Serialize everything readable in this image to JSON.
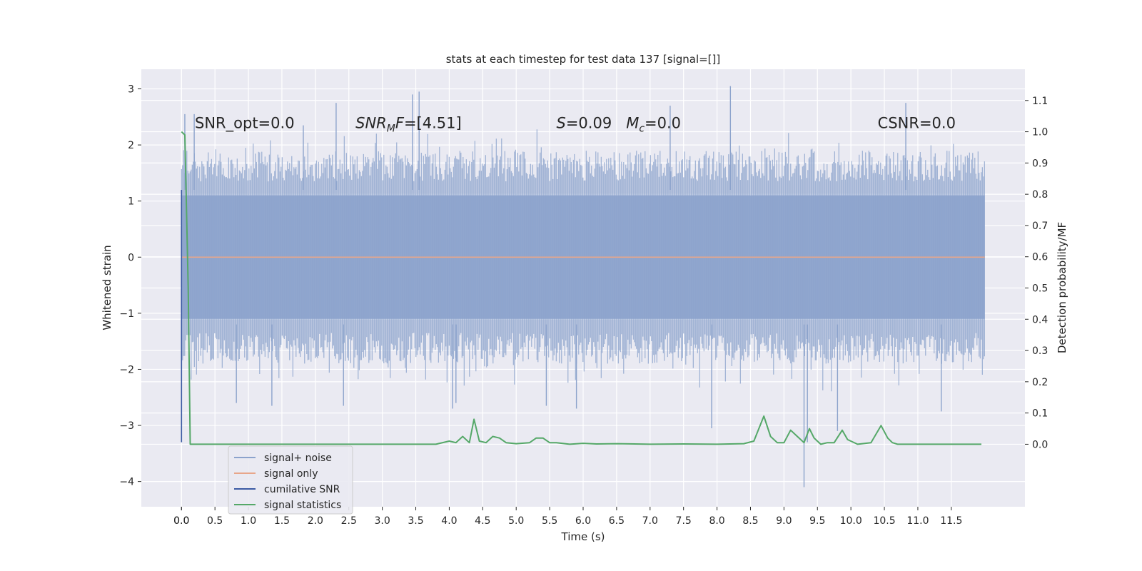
{
  "chart_data": {
    "type": "line",
    "title": "stats at each timestep for test data 137 [signal=[]]",
    "xlabel": "Time (s)",
    "ylabel_left": "Whitened strain",
    "ylabel_right": "Detection probability/MF",
    "xlim": [
      -0.6,
      12.6
    ],
    "ylim_left": [
      -4.45,
      3.35
    ],
    "ylim_right": [
      -0.2,
      1.2
    ],
    "grid": true,
    "x_ticks": [
      "0.0",
      "0.0",
      "0.5",
      "1.0",
      "1.5",
      "2.0",
      "2.5",
      "3.0",
      "3.5",
      "4.0",
      "4.5",
      "5.0",
      "5.5",
      "6.0",
      "6.5",
      "7.0",
      "7.5",
      "8.0",
      "8.5",
      "9.0",
      "9.5",
      "10.0",
      "10.5",
      "11.0",
      "11.5"
    ],
    "x_tick_values": [
      0.0,
      0.0,
      0.5,
      1.0,
      1.5,
      2.0,
      2.5,
      3.0,
      3.5,
      4.0,
      4.5,
      5.0,
      5.5,
      6.0,
      6.5,
      7.0,
      7.5,
      8.0,
      8.5,
      9.0,
      9.5,
      10.0,
      10.5,
      11.0,
      11.5
    ],
    "y_ticks_left": [
      "3",
      "2",
      "1",
      "0",
      "−1",
      "−2",
      "−3",
      "−4"
    ],
    "y_tick_values_left": [
      3,
      2,
      1,
      0,
      -1,
      -2,
      -3,
      -4
    ],
    "y_ticks_right": [
      "1.1",
      "1.0",
      "0.9",
      "0.8",
      "0.7",
      "0.6",
      "0.5",
      "0.4",
      "0.3",
      "0.2",
      "0.1",
      "0.0"
    ],
    "y_tick_values_right": [
      1.1,
      1.0,
      0.9,
      0.8,
      0.7,
      0.6,
      0.5,
      0.4,
      0.3,
      0.2,
      0.1,
      0.0
    ],
    "annotations": [
      {
        "x": 0.2,
        "y": 2.3,
        "text": "SNR_opt=0.0"
      },
      {
        "x": 2.6,
        "y": 2.3,
        "text": "SNR_MF=[4.51]"
      },
      {
        "x": 5.6,
        "y": 2.3,
        "text": "S=0.09   M_c=0.0"
      },
      {
        "x": 10.4,
        "y": 2.3,
        "text": "CSNR=0.0"
      }
    ],
    "legend": {
      "location": "lower-left",
      "entries": [
        "signal+ noise",
        "signal only",
        "cumilative SNR",
        "signal statistics"
      ]
    },
    "series": [
      {
        "name": "signal+ noise",
        "axis": "left",
        "color": "#8ca3cc",
        "kind": "noise-band",
        "x_range": [
          0.0,
          12.0
        ],
        "core_amplitude": 1.1,
        "spikes": [
          {
            "x": 0.05,
            "y": 2.55
          },
          {
            "x": 0.19,
            "y": 2.55
          },
          {
            "x": 0.82,
            "y": -2.6
          },
          {
            "x": 1.35,
            "y": -2.65
          },
          {
            "x": 1.82,
            "y": 2.35
          },
          {
            "x": 2.31,
            "y": 2.75
          },
          {
            "x": 2.42,
            "y": -2.65
          },
          {
            "x": 3.45,
            "y": 2.9
          },
          {
            "x": 3.55,
            "y": 2.95
          },
          {
            "x": 4.05,
            "y": -2.7
          },
          {
            "x": 4.1,
            "y": -2.6
          },
          {
            "x": 5.45,
            "y": -2.65
          },
          {
            "x": 5.9,
            "y": -2.7
          },
          {
            "x": 7.3,
            "y": 2.7
          },
          {
            "x": 7.92,
            "y": -3.05
          },
          {
            "x": 8.2,
            "y": 3.05
          },
          {
            "x": 9.3,
            "y": -4.1
          },
          {
            "x": 9.35,
            "y": -3.3
          },
          {
            "x": 9.8,
            "y": -3.1
          },
          {
            "x": 10.82,
            "y": 2.75
          },
          {
            "x": 11.35,
            "y": -2.75
          }
        ]
      },
      {
        "name": "signal only",
        "axis": "left",
        "color": "#e8a68a",
        "x": [
          0.0,
          12.0
        ],
        "y": [
          0.0,
          0.0
        ]
      },
      {
        "name": "cumilative SNR",
        "axis": "left",
        "color": "#3b5aa3",
        "x": [
          0.0,
          0.0
        ],
        "y": [
          -3.3,
          1.2
        ]
      },
      {
        "name": "signal statistics",
        "axis": "right",
        "color": "#55a868",
        "x": [
          0.0,
          0.05,
          0.1,
          0.13,
          0.3,
          1.0,
          2.0,
          3.0,
          3.8,
          4.0,
          4.1,
          4.2,
          4.3,
          4.37,
          4.45,
          4.55,
          4.65,
          4.75,
          4.85,
          5.0,
          5.2,
          5.3,
          5.4,
          5.5,
          5.6,
          5.8,
          6.0,
          6.2,
          6.5,
          7.0,
          7.5,
          8.0,
          8.4,
          8.55,
          8.7,
          8.8,
          8.9,
          9.0,
          9.1,
          9.2,
          9.3,
          9.38,
          9.45,
          9.55,
          9.65,
          9.75,
          9.87,
          9.95,
          10.1,
          10.3,
          10.45,
          10.55,
          10.62,
          10.7,
          10.8,
          11.0,
          11.5,
          11.95
        ],
        "y": [
          1.0,
          0.99,
          0.5,
          0.0,
          0.0,
          0.0,
          0.0,
          0.0,
          0.0,
          0.01,
          0.005,
          0.025,
          0.005,
          0.08,
          0.01,
          0.005,
          0.025,
          0.02,
          0.005,
          0.002,
          0.005,
          0.02,
          0.02,
          0.005,
          0.005,
          0.0,
          0.003,
          0.001,
          0.002,
          0.0,
          0.001,
          0.0,
          0.002,
          0.01,
          0.09,
          0.025,
          0.005,
          0.005,
          0.045,
          0.025,
          0.005,
          0.05,
          0.02,
          0.0,
          0.005,
          0.005,
          0.045,
          0.015,
          0.0,
          0.005,
          0.06,
          0.02,
          0.005,
          0.0,
          0.0,
          0.0,
          0.0,
          0.0
        ]
      }
    ]
  }
}
